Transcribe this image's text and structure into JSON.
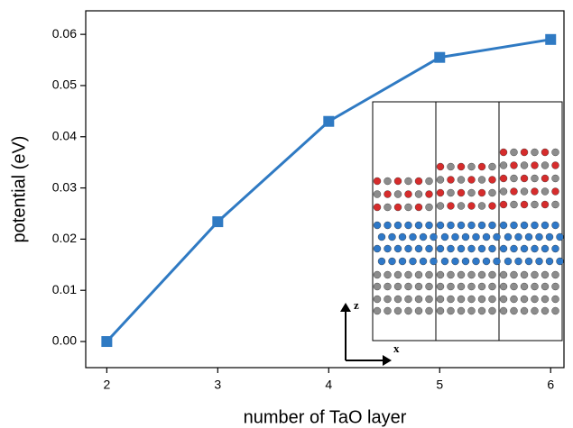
{
  "chart_data": {
    "type": "line",
    "x_label": "number of TaO layer",
    "y_label": "potential (eV)",
    "x": [
      2,
      3,
      4,
      5,
      6
    ],
    "series": [
      {
        "color": "#2f7ac3",
        "values": [
          0.0,
          0.0234,
          0.043,
          0.0555,
          0.059
        ]
      }
    ],
    "xlim": [
      1.81,
      6.12
    ],
    "xticks": [
      2,
      3,
      4,
      5,
      6
    ],
    "ylim": [
      -0.0051,
      0.0646
    ],
    "yticks": [
      {
        "value": 0,
        "label": "0.00"
      },
      {
        "value": 0.01,
        "label": "0.01"
      },
      {
        "value": 0.02,
        "label": "0.02"
      },
      {
        "value": 0.03,
        "label": "0.03"
      },
      {
        "value": 0.04,
        "label": "0.04"
      },
      {
        "value": 0.05,
        "label": "0.05"
      },
      {
        "value": 0.06,
        "label": "0.06"
      }
    ],
    "annotations": [
      "z",
      "x"
    ]
  }
}
